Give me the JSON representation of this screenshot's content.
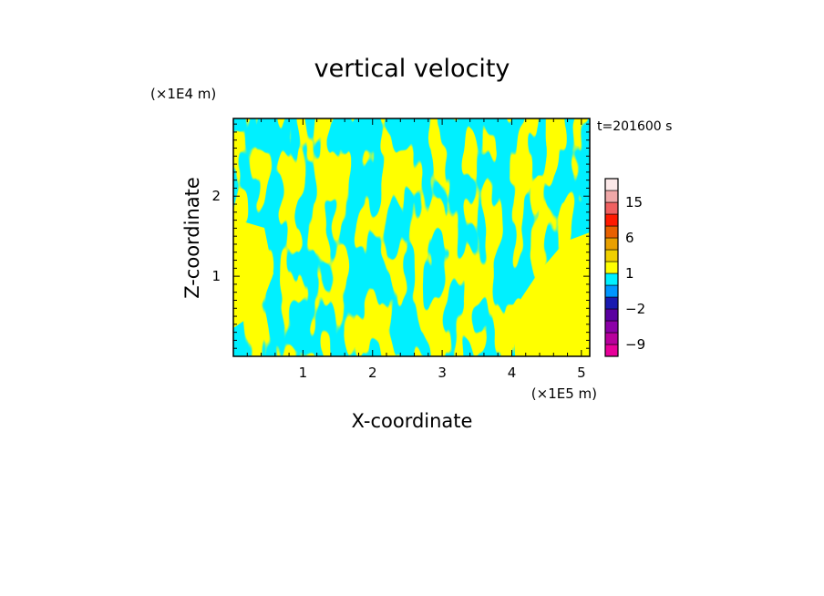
{
  "chart_data": {
    "type": "heatmap",
    "title": "vertical velocity",
    "xlabel": "X-coordinate",
    "ylabel": "Z-coordinate",
    "x_unit": "(×1E5 m)",
    "y_unit": "(×1E4 m)",
    "time_label": "t=201600 s",
    "xlim": [
      0,
      5.12
    ],
    "ylim": [
      0,
      2.97
    ],
    "x_ticks": [
      1,
      2,
      3,
      4,
      5
    ],
    "y_ticks": [
      1,
      2
    ],
    "x_tick_labels": [
      "1",
      "2",
      "3",
      "4",
      "5"
    ],
    "y_tick_labels": [
      "1",
      "2"
    ],
    "fill_colors": {
      "positive": "#ffff00",
      "negative": "#00f0ff"
    },
    "colorbar": {
      "levels": [
        -12,
        -9,
        -6,
        -3,
        -2,
        -1,
        0,
        1,
        2,
        3,
        6,
        9,
        12,
        15,
        18,
        21
      ],
      "colors": [
        "#e8009a",
        "#b8009c",
        "#8c00a8",
        "#5a00a0",
        "#1a1ab0",
        "#0096ff",
        "#00f0ff",
        "#ffff00",
        "#f0d000",
        "#e8a000",
        "#e86000",
        "#ff1a00",
        "#f06060",
        "#f0a8a8",
        "#fce8e8"
      ],
      "tick_labels": [
        "15",
        "6",
        "1",
        "−2",
        "−9"
      ],
      "tick_values": [
        15,
        6,
        1,
        -2,
        -9
      ]
    }
  }
}
